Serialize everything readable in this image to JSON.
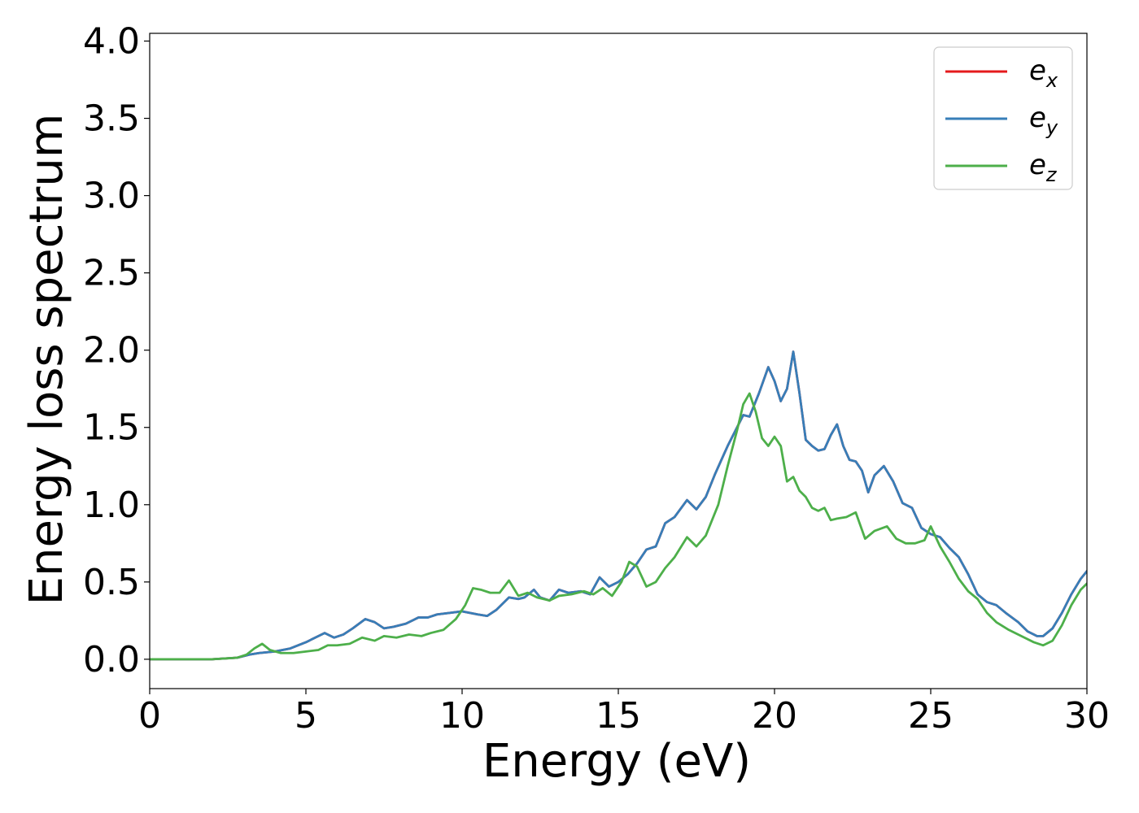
{
  "chart_data": {
    "type": "line",
    "title": "",
    "xlabel": "Energy (eV)",
    "ylabel": "Energy loss spectrum",
    "xlim": [
      0,
      30
    ],
    "ylim": [
      -0.19,
      4.05
    ],
    "xticks": [
      "0",
      "5",
      "10",
      "15",
      "20",
      "25",
      "30"
    ],
    "yticks": [
      "0.0",
      "0.5",
      "1.0",
      "1.5",
      "2.0",
      "2.5",
      "3.0",
      "3.5",
      "4.0"
    ],
    "grid": false,
    "legend_position": "top-right",
    "series": [
      {
        "name": "e_x",
        "label_base": "e",
        "label_sub": "x",
        "color": "#e41a1c",
        "x": [
          0,
          2,
          2.8,
          3.2,
          3.5,
          4.0,
          4.5,
          5.0,
          5.3,
          5.6,
          5.9,
          6.2,
          6.5,
          6.9,
          7.2,
          7.5,
          7.8,
          8.2,
          8.6,
          8.9,
          9.2,
          9.6,
          10.0,
          10.5,
          10.8,
          11.1,
          11.5,
          11.8,
          12.0,
          12.3,
          12.5,
          12.8,
          13.1,
          13.4,
          13.8,
          14.1,
          14.4,
          14.7,
          15.0,
          15.3,
          15.6,
          15.9,
          16.2,
          16.5,
          16.8,
          17.2,
          17.5,
          17.8,
          18.1,
          18.5,
          18.8,
          19.0,
          19.2,
          19.5,
          19.8,
          20.0,
          20.2,
          20.4,
          20.6,
          20.8,
          21.0,
          21.2,
          21.4,
          21.6,
          21.8,
          22.0,
          22.2,
          22.4,
          22.6,
          22.8,
          23.0,
          23.2,
          23.5,
          23.8,
          24.1,
          24.4,
          24.7,
          25.0,
          25.3,
          25.6,
          25.9,
          26.2,
          26.5,
          26.8,
          27.1,
          27.4,
          27.8,
          28.1,
          28.4,
          28.6,
          28.9,
          29.2,
          29.5,
          29.8,
          30.0
        ],
        "y": [
          0,
          0,
          0.01,
          0.03,
          0.04,
          0.05,
          0.07,
          0.11,
          0.14,
          0.17,
          0.14,
          0.16,
          0.2,
          0.26,
          0.24,
          0.2,
          0.21,
          0.23,
          0.27,
          0.27,
          0.29,
          0.3,
          0.31,
          0.29,
          0.28,
          0.32,
          0.4,
          0.39,
          0.4,
          0.45,
          0.4,
          0.38,
          0.45,
          0.43,
          0.44,
          0.42,
          0.53,
          0.47,
          0.5,
          0.55,
          0.62,
          0.71,
          0.73,
          0.88,
          0.92,
          1.03,
          0.97,
          1.05,
          1.2,
          1.38,
          1.5,
          1.58,
          1.57,
          1.72,
          1.89,
          1.8,
          1.67,
          1.75,
          1.99,
          1.72,
          1.42,
          1.38,
          1.35,
          1.36,
          1.45,
          1.52,
          1.38,
          1.29,
          1.28,
          1.22,
          1.08,
          1.19,
          1.25,
          1.15,
          1.01,
          0.98,
          0.85,
          0.81,
          0.79,
          0.72,
          0.66,
          0.55,
          0.42,
          0.37,
          0.35,
          0.3,
          0.24,
          0.18,
          0.15,
          0.15,
          0.2,
          0.3,
          0.42,
          0.52,
          0.57
        ]
      },
      {
        "name": "e_y",
        "label_base": "e",
        "label_sub": "y",
        "color": "#377eb8",
        "x": [
          0,
          2,
          2.8,
          3.2,
          3.5,
          4.0,
          4.5,
          5.0,
          5.3,
          5.6,
          5.9,
          6.2,
          6.5,
          6.9,
          7.2,
          7.5,
          7.8,
          8.2,
          8.6,
          8.9,
          9.2,
          9.6,
          10.0,
          10.5,
          10.8,
          11.1,
          11.5,
          11.8,
          12.0,
          12.3,
          12.5,
          12.8,
          13.1,
          13.4,
          13.8,
          14.1,
          14.4,
          14.7,
          15.0,
          15.3,
          15.6,
          15.9,
          16.2,
          16.5,
          16.8,
          17.2,
          17.5,
          17.8,
          18.1,
          18.5,
          18.8,
          19.0,
          19.2,
          19.5,
          19.8,
          20.0,
          20.2,
          20.4,
          20.6,
          20.8,
          21.0,
          21.2,
          21.4,
          21.6,
          21.8,
          22.0,
          22.2,
          22.4,
          22.6,
          22.8,
          23.0,
          23.2,
          23.5,
          23.8,
          24.1,
          24.4,
          24.7,
          25.0,
          25.3,
          25.6,
          25.9,
          26.2,
          26.5,
          26.8,
          27.1,
          27.4,
          27.8,
          28.1,
          28.4,
          28.6,
          28.9,
          29.2,
          29.5,
          29.8,
          30.0
        ],
        "y": [
          0,
          0,
          0.01,
          0.03,
          0.04,
          0.05,
          0.07,
          0.11,
          0.14,
          0.17,
          0.14,
          0.16,
          0.2,
          0.26,
          0.24,
          0.2,
          0.21,
          0.23,
          0.27,
          0.27,
          0.29,
          0.3,
          0.31,
          0.29,
          0.28,
          0.32,
          0.4,
          0.39,
          0.4,
          0.45,
          0.4,
          0.38,
          0.45,
          0.43,
          0.44,
          0.42,
          0.53,
          0.47,
          0.5,
          0.55,
          0.62,
          0.71,
          0.73,
          0.88,
          0.92,
          1.03,
          0.97,
          1.05,
          1.2,
          1.38,
          1.5,
          1.58,
          1.57,
          1.72,
          1.89,
          1.8,
          1.67,
          1.75,
          1.99,
          1.72,
          1.42,
          1.38,
          1.35,
          1.36,
          1.45,
          1.52,
          1.38,
          1.29,
          1.28,
          1.22,
          1.08,
          1.19,
          1.25,
          1.15,
          1.01,
          0.98,
          0.85,
          0.81,
          0.79,
          0.72,
          0.66,
          0.55,
          0.42,
          0.37,
          0.35,
          0.3,
          0.24,
          0.18,
          0.15,
          0.15,
          0.2,
          0.3,
          0.42,
          0.52,
          0.57
        ]
      },
      {
        "name": "e_z",
        "label_base": "e",
        "label_sub": "z",
        "color": "#4daf4a",
        "x": [
          0,
          2,
          2.8,
          3.1,
          3.35,
          3.6,
          3.85,
          4.2,
          4.6,
          5.0,
          5.4,
          5.7,
          6.0,
          6.4,
          6.8,
          7.2,
          7.5,
          7.9,
          8.3,
          8.7,
          9.0,
          9.4,
          9.8,
          10.1,
          10.35,
          10.6,
          10.9,
          11.2,
          11.5,
          11.8,
          12.1,
          12.4,
          12.8,
          13.1,
          13.5,
          13.9,
          14.2,
          14.5,
          14.8,
          15.1,
          15.35,
          15.6,
          15.9,
          16.2,
          16.5,
          16.8,
          17.2,
          17.5,
          17.8,
          18.2,
          18.5,
          18.8,
          19.0,
          19.2,
          19.4,
          19.6,
          19.8,
          20.0,
          20.2,
          20.4,
          20.6,
          20.8,
          21.0,
          21.2,
          21.4,
          21.6,
          21.8,
          22.0,
          22.3,
          22.6,
          22.9,
          23.2,
          23.6,
          23.9,
          24.2,
          24.5,
          24.8,
          25.0,
          25.3,
          25.6,
          25.9,
          26.2,
          26.5,
          26.8,
          27.1,
          27.5,
          27.9,
          28.3,
          28.6,
          28.9,
          29.2,
          29.5,
          29.8,
          30.0
        ],
        "y": [
          0,
          0,
          0.01,
          0.03,
          0.07,
          0.1,
          0.06,
          0.04,
          0.04,
          0.05,
          0.06,
          0.09,
          0.09,
          0.1,
          0.14,
          0.12,
          0.15,
          0.14,
          0.16,
          0.15,
          0.17,
          0.19,
          0.26,
          0.35,
          0.46,
          0.45,
          0.43,
          0.43,
          0.51,
          0.41,
          0.43,
          0.4,
          0.38,
          0.41,
          0.42,
          0.44,
          0.42,
          0.46,
          0.41,
          0.5,
          0.63,
          0.6,
          0.47,
          0.5,
          0.59,
          0.66,
          0.79,
          0.73,
          0.8,
          1.0,
          1.25,
          1.48,
          1.65,
          1.72,
          1.6,
          1.43,
          1.38,
          1.44,
          1.38,
          1.15,
          1.18,
          1.09,
          1.05,
          0.98,
          0.96,
          0.98,
          0.9,
          0.91,
          0.92,
          0.95,
          0.78,
          0.83,
          0.86,
          0.78,
          0.75,
          0.75,
          0.77,
          0.86,
          0.73,
          0.63,
          0.52,
          0.44,
          0.39,
          0.3,
          0.24,
          0.19,
          0.15,
          0.11,
          0.09,
          0.12,
          0.22,
          0.35,
          0.45,
          0.49
        ]
      }
    ]
  }
}
